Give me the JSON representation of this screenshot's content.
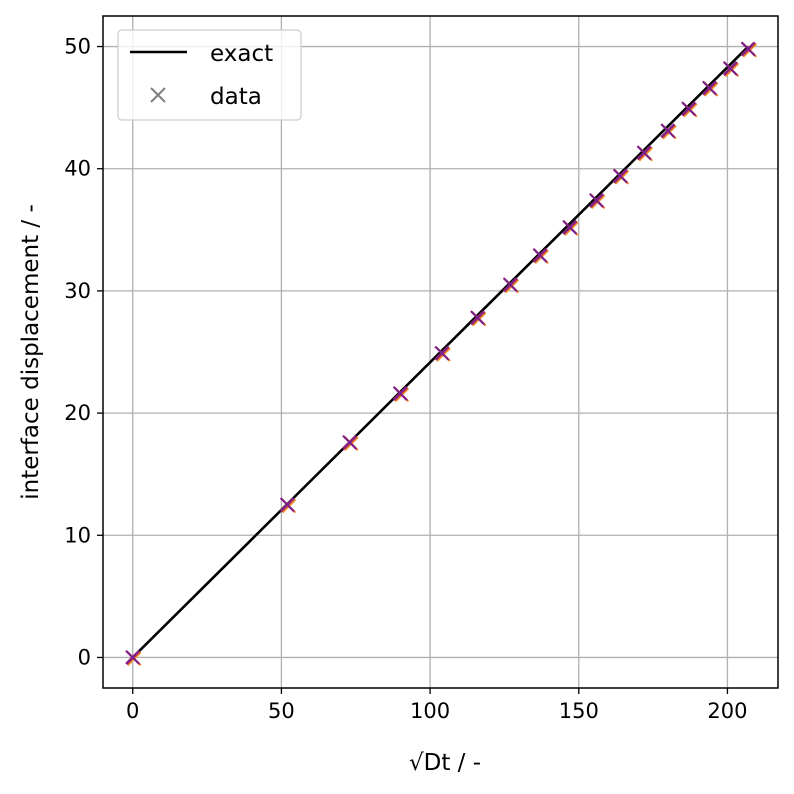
{
  "chart_data": {
    "type": "scatter",
    "xlabel": "√Dt / -",
    "ylabel": "interface displacement / -",
    "xlim": [
      -10,
      217
    ],
    "ylim": [
      -2.5,
      52.5
    ],
    "xticks": [
      0,
      50,
      100,
      150,
      200
    ],
    "yticks": [
      0,
      10,
      20,
      30,
      40,
      50
    ],
    "grid": true,
    "legend_position": "top-left",
    "legend": [
      {
        "label": "exact",
        "kind": "line",
        "color": "#000000"
      },
      {
        "label": "data",
        "kind": "marker",
        "color": "#808080"
      }
    ],
    "series": [
      {
        "name": "exact",
        "kind": "line",
        "color": "#000000",
        "x": [
          0,
          207
        ],
        "y": [
          0,
          50
        ]
      },
      {
        "name": "data",
        "kind": "scatter",
        "marker": "x",
        "colors": [
          "#f0a33a",
          "#e4572e",
          "#b5367a",
          "#7a1f8c"
        ],
        "x": [
          0,
          52,
          73,
          90,
          104,
          116,
          127,
          137,
          147,
          156,
          164,
          172,
          180,
          187,
          194,
          201,
          207
        ],
        "y": [
          0,
          12.5,
          17.6,
          21.6,
          24.9,
          27.8,
          30.5,
          32.9,
          35.2,
          37.4,
          39.4,
          41.3,
          43.1,
          44.9,
          46.6,
          48.2,
          49.8
        ]
      }
    ]
  }
}
